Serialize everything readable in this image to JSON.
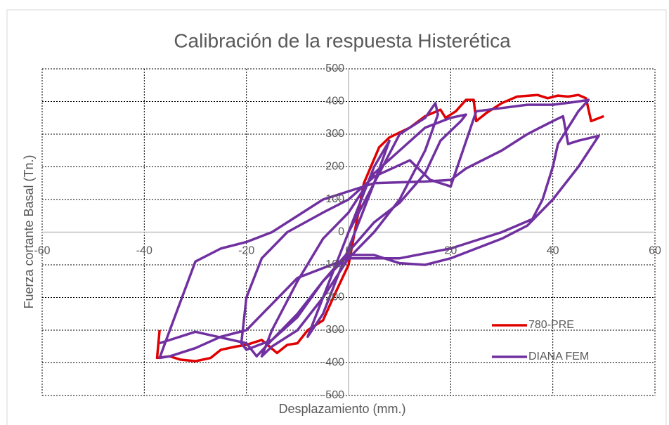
{
  "chart_data": {
    "type": "line",
    "title": "Calibración de la respuesta Histerética",
    "x_label": "Desplazamiento (mm.)",
    "y_label": "Fuerza cortante Basal (Tn.)",
    "xlim": [
      -60,
      60
    ],
    "ylim": [
      -500,
      500
    ],
    "xticks": [
      -60,
      -40,
      -20,
      0,
      20,
      40,
      60
    ],
    "yticks": [
      -500,
      -400,
      -300,
      -200,
      -100,
      0,
      100,
      200,
      300,
      400,
      500
    ],
    "grid": true,
    "legend": "lower right",
    "series": [
      {
        "name": "780-PRE",
        "color": "#e00000",
        "x": [
          -37,
          -37.5,
          -35,
          -33,
          -30,
          -27,
          -25,
          -22,
          -20,
          -17,
          -14,
          -12,
          -10,
          -8,
          -5,
          -3,
          0,
          3,
          6,
          8,
          10,
          12,
          15,
          18,
          19,
          21,
          23,
          24.5,
          25,
          27,
          30,
          33,
          37,
          39,
          41,
          43,
          45,
          46.5,
          47.5,
          50
        ],
        "values": [
          -300,
          -385,
          -380,
          -390,
          -395,
          -385,
          -360,
          -350,
          -345,
          -330,
          -370,
          -345,
          -340,
          -300,
          -270,
          -200,
          -100,
          150,
          260,
          290,
          305,
          320,
          355,
          375,
          350,
          370,
          405,
          405,
          340,
          365,
          395,
          415,
          420,
          410,
          418,
          415,
          420,
          410,
          340,
          355
        ]
      },
      {
        "name": "DIANA FEM",
        "color": "#7030a0",
        "x": [
          0,
          5,
          8,
          5,
          0,
          -5,
          -8,
          -5,
          0,
          10,
          15,
          17,
          17.5,
          15,
          10,
          5,
          0,
          -5,
          -10,
          -15,
          -17,
          -15,
          -10,
          -5,
          0,
          5,
          10,
          15,
          20,
          23,
          22,
          18,
          15,
          10,
          5,
          0,
          -5,
          -10,
          -15,
          -20,
          -21,
          -20,
          -17,
          -12,
          -5,
          0,
          5,
          12,
          16,
          20,
          25,
          30,
          35,
          40,
          45,
          47,
          45,
          43,
          41,
          40,
          38,
          36,
          30,
          20,
          10,
          0,
          -10,
          -20,
          -25,
          -30,
          -35,
          -37,
          -35,
          -30,
          -25,
          -20,
          -15,
          -10,
          -5,
          0,
          5,
          15,
          20,
          23,
          30,
          35,
          40,
          42,
          43,
          45,
          49,
          45,
          40,
          35,
          30,
          20,
          15,
          10,
          5,
          0,
          -5,
          -10,
          -15,
          -18,
          -20,
          -30,
          -37
        ],
        "values": [
          0,
          200,
          280,
          150,
          -50,
          -250,
          -320,
          -200,
          0,
          300,
          350,
          395,
          360,
          250,
          100,
          0,
          -80,
          -200,
          -300,
          -350,
          -380,
          -300,
          -150,
          -20,
          60,
          180,
          250,
          320,
          350,
          360,
          340,
          280,
          180,
          90,
          30,
          -60,
          -150,
          -260,
          -330,
          -360,
          -340,
          -200,
          -80,
          0,
          60,
          100,
          170,
          220,
          160,
          140,
          370,
          380,
          390,
          390,
          400,
          405,
          370,
          320,
          270,
          200,
          100,
          40,
          0,
          -50,
          -80,
          -80,
          -140,
          -300,
          -320,
          -355,
          -380,
          -385,
          -300,
          -90,
          -50,
          -30,
          0,
          50,
          100,
          125,
          150,
          155,
          160,
          195,
          250,
          300,
          340,
          355,
          270,
          280,
          295,
          200,
          100,
          20,
          -20,
          -80,
          -100,
          -95,
          -70,
          -70,
          -150,
          -250,
          -330,
          -380,
          -340,
          -305,
          -340
        ]
      }
    ]
  }
}
